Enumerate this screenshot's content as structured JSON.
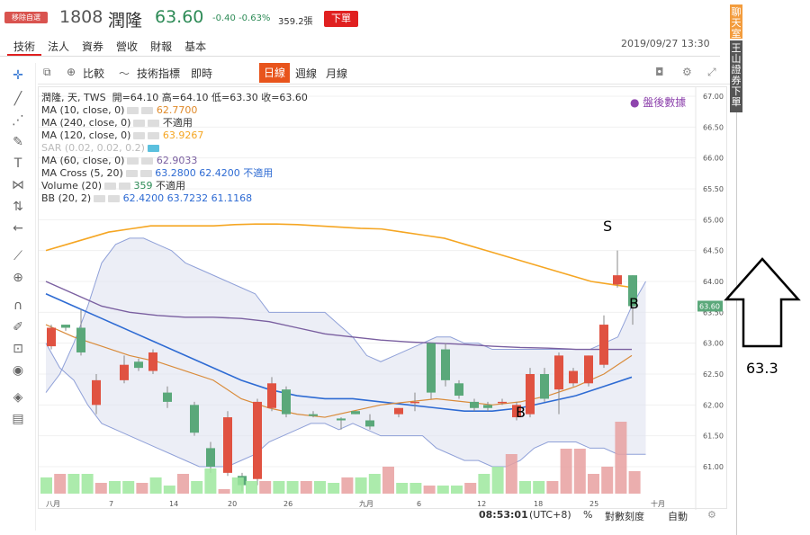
{
  "header": {
    "badge": "移除自選",
    "code": "1808",
    "name": "潤隆",
    "price": "63.60",
    "change": "-0.40",
    "change_pct": "-0.63%",
    "volume": "359.2張",
    "order_button": "下單",
    "datetime": "2019/09/27 13:30"
  },
  "top_tabs": [
    "技術",
    "法人",
    "資券",
    "營收",
    "財報",
    "基本"
  ],
  "toolbar": {
    "compare": "比較",
    "indicators": "技術指標",
    "realtime": "即時",
    "day": "日線",
    "week": "週線",
    "month": "月線"
  },
  "legend": {
    "main": "潤隆, 天, TWS",
    "ohlc": "開=64.10  高=64.10  低=63.30  收=63.60",
    "ma10": "MA (10, close, 0)",
    "ma10_val": "62.7700",
    "ma240": "MA (240, close, 0)",
    "ma240_val": "不適用",
    "ma120": "MA (120, close, 0)",
    "ma120_val": "63.9267",
    "sar": "SAR (0.02, 0.02, 0.2)",
    "ma60": "MA (60, close, 0)",
    "ma60_val": "62.9033",
    "macross": "MA Cross (5, 20)",
    "macross_val": "63.2800  62.4200  不適用",
    "volume": "Volume (20)",
    "volume_val": "359",
    "volume_na": "不適用",
    "bb": "BB (20, 2)",
    "bb_val": "62.4200  63.7232  61.1168"
  },
  "after_data": "盤後數據",
  "price_axis": [
    "67.00",
    "66.50",
    "66.00",
    "65.50",
    "65.00",
    "64.50",
    "64.00",
    "63.50",
    "63.00",
    "62.50",
    "62.00",
    "61.50",
    "61.00"
  ],
  "price_tag": "63.60",
  "date_axis": [
    "八月",
    "7",
    "14",
    "20",
    "26",
    "九月",
    "6",
    "12",
    "18",
    "25",
    "十月"
  ],
  "annotations": {
    "s": "S",
    "b1": "B",
    "b2": "B",
    "target": "63.3"
  },
  "bottom": {
    "time": "08:53:01",
    "tz": "(UTC+8)",
    "pct": "%",
    "log": "對數刻度",
    "auto": "自動"
  },
  "side_tabs": [
    "聊天室",
    "王山證券下單"
  ],
  "colors": {
    "up": "#e05241",
    "down": "#5aa87a",
    "orange": "#f5a623",
    "purple": "#7a5fa0",
    "blue": "#2e6bd3"
  }
}
